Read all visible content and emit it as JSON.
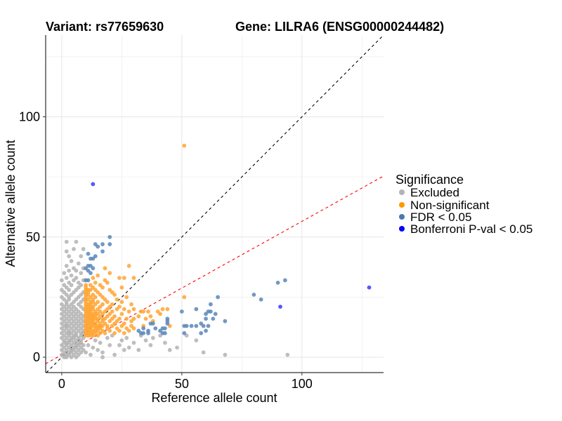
{
  "chart_data": {
    "type": "scatter",
    "title_left": "Variant: rs77659630",
    "title_right": "Gene: LILRA6 (ENSG00000244482)",
    "xlabel": "Reference allele count",
    "ylabel": "Alternative allele count",
    "xlim": [
      -6.7,
      134
    ],
    "ylim": [
      -6.4,
      134
    ],
    "xticks": [
      0,
      50,
      100
    ],
    "yticks": [
      0,
      50,
      100
    ],
    "grid_minor": [
      25,
      75,
      125
    ],
    "grid": true,
    "legend": {
      "title": "Significance",
      "placement": "right",
      "entries": [
        {
          "label": "Excluded",
          "color": "#b3b3b3"
        },
        {
          "label": "Non-significant",
          "color": "#ff9900"
        },
        {
          "label": "FDR < 0.05",
          "color": "#4a78b0"
        },
        {
          "label": "Bonferroni P-val < 0.05",
          "color": "#0000ff"
        }
      ]
    },
    "reference_lines": [
      {
        "name": "identity",
        "slope": 1,
        "intercept": 0,
        "color": "#000000",
        "style": "dashed"
      },
      {
        "name": "threshold",
        "slope": 0.555,
        "intercept": 1,
        "color": "#ff0000",
        "style": "dashed"
      }
    ],
    "series": [
      {
        "name": "Excluded",
        "color": "#b3b3b3",
        "columns": [
          {
            "x": 0,
            "ys": [
              1,
              3,
              5,
              8,
              10,
              12,
              14,
              16,
              18,
              20,
              22,
              25,
              28,
              32
            ]
          },
          {
            "x": 1,
            "ys": [
              0,
              2,
              4,
              6,
              7,
              9,
              11,
              13,
              15,
              17,
              19,
              21,
              24,
              27,
              30,
              35
            ]
          },
          {
            "x": 2,
            "ys": [
              0,
              1,
              3,
              5,
              6,
              8,
              10,
              12,
              13,
              14,
              16,
              18,
              20,
              22,
              23,
              26,
              29,
              33,
              38,
              44,
              48
            ]
          },
          {
            "x": 3,
            "ys": [
              1,
              2,
              4,
              6,
              7,
              9,
              10,
              11,
              13,
              15,
              17,
              19,
              21,
              24,
              25,
              28,
              31,
              36,
              42
            ]
          },
          {
            "x": 4,
            "ys": [
              0,
              2,
              3,
              5,
              7,
              8,
              10,
              12,
              14,
              16,
              18,
              20,
              22,
              26,
              30,
              34,
              40
            ]
          },
          {
            "x": 5,
            "ys": [
              1,
              3,
              4,
              6,
              8,
              9,
              11,
              13,
              15,
              17,
              19,
              21,
              23,
              27,
              32,
              37,
              45
            ]
          },
          {
            "x": 6,
            "ys": [
              0,
              2,
              4,
              5,
              7,
              9,
              10,
              12,
              14,
              16,
              18,
              20,
              24,
              28,
              33,
              36,
              48
            ]
          },
          {
            "x": 7,
            "ys": [
              1,
              3,
              5,
              6,
              8,
              11,
              13,
              15,
              17,
              19,
              22,
              25,
              29,
              31,
              39
            ]
          },
          {
            "x": 8,
            "ys": [
              2,
              4,
              6,
              7,
              9,
              10,
              12,
              14,
              16,
              18,
              21,
              23,
              26,
              30,
              35,
              42
            ]
          },
          {
            "x": 9,
            "ys": [
              3,
              5,
              8,
              10,
              11,
              13,
              15,
              17,
              20,
              24,
              27,
              32,
              37,
              45
            ]
          }
        ],
        "points": [
          [
            10,
            2
          ],
          [
            11,
            5
          ],
          [
            12,
            1
          ],
          [
            13,
            4
          ],
          [
            14,
            7
          ],
          [
            15,
            3
          ],
          [
            16,
            6
          ],
          [
            17,
            2
          ],
          [
            17,
            0
          ],
          [
            19,
            8
          ],
          [
            20,
            5
          ],
          [
            21,
            9
          ],
          [
            22,
            1
          ],
          [
            24,
            5
          ],
          [
            25,
            7
          ],
          [
            26,
            3
          ],
          [
            27,
            8
          ],
          [
            28,
            4
          ],
          [
            30,
            6
          ],
          [
            32,
            3
          ],
          [
            33,
            9
          ],
          [
            35,
            7
          ],
          [
            37,
            5
          ],
          [
            38,
            8
          ],
          [
            41,
            9
          ],
          [
            43,
            6
          ],
          [
            45,
            3
          ],
          [
            48,
            4
          ],
          [
            52,
            9
          ],
          [
            56,
            7
          ],
          [
            59,
            2
          ],
          [
            68,
            1
          ],
          [
            94,
            1
          ]
        ]
      },
      {
        "name": "Non-significant",
        "color": "#ffa533",
        "columns": [
          {
            "x": 10,
            "ys": [
              9,
              10,
              11,
              12,
              13,
              14,
              15,
              16,
              17,
              18,
              19,
              20,
              21,
              22,
              23,
              24,
              25,
              26,
              27,
              28,
              29,
              30
            ]
          },
          {
            "x": 11,
            "ys": [
              9,
              10,
              11,
              12,
              13,
              14,
              15,
              16,
              17,
              18,
              19,
              20,
              21,
              22,
              24,
              26,
              27,
              28
            ]
          },
          {
            "x": 12,
            "ys": [
              9,
              10,
              11,
              12,
              13,
              14,
              15,
              16,
              17,
              18,
              19,
              20,
              21,
              22,
              23,
              25,
              28,
              30
            ]
          },
          {
            "x": 13,
            "ys": [
              9,
              10,
              11,
              13,
              14,
              15,
              16,
              17,
              18,
              20,
              21,
              23,
              24,
              26,
              29,
              33
            ]
          },
          {
            "x": 14,
            "ys": [
              10,
              11,
              12,
              13,
              14,
              16,
              17,
              18,
              19,
              22,
              25,
              28,
              31
            ]
          },
          {
            "x": 15,
            "ys": [
              9,
              11,
              12,
              13,
              15,
              16,
              18,
              20,
              23,
              27,
              34
            ]
          },
          {
            "x": 16,
            "ys": [
              10,
              12,
              13,
              14,
              17,
              19,
              21,
              26,
              30
            ]
          },
          {
            "x": 17,
            "ys": [
              11,
              13,
              15,
              16,
              18,
              22,
              25,
              29
            ]
          },
          {
            "x": 18,
            "ys": [
              10,
              14,
              16,
              19,
              24,
              32,
              37
            ]
          },
          {
            "x": 19,
            "ys": [
              12,
              13,
              17,
              20,
              23,
              31
            ]
          },
          {
            "x": 20,
            "ys": [
              11,
              15,
              18,
              21,
              28,
              35
            ]
          },
          {
            "x": 21,
            "ys": [
              13,
              16,
              19,
              22,
              27
            ]
          },
          {
            "x": 22,
            "ys": [
              10,
              14,
              17,
              26
            ]
          },
          {
            "x": 23,
            "ys": [
              12,
              15,
              20,
              24
            ]
          },
          {
            "x": 24,
            "ys": [
              11,
              16,
              21,
              33
            ]
          },
          {
            "x": 25,
            "ys": [
              13,
              18,
              23,
              29
            ]
          },
          {
            "x": 26,
            "ys": [
              10,
              14,
              20,
              33
            ]
          },
          {
            "x": 27,
            "ys": [
              12,
              16,
              25
            ]
          },
          {
            "x": 28,
            "ys": [
              11,
              19,
              38
            ]
          },
          {
            "x": 29,
            "ys": [
              13,
              15,
              22
            ]
          },
          {
            "x": 30,
            "ys": [
              12,
              20,
              33
            ]
          }
        ],
        "points": [
          [
            32,
            17
          ],
          [
            33,
            19
          ],
          [
            34,
            19
          ],
          [
            34,
            13
          ],
          [
            35,
            16
          ],
          [
            36,
            19
          ],
          [
            37,
            17
          ],
          [
            38,
            15
          ],
          [
            40,
            19
          ],
          [
            41,
            18
          ],
          [
            42,
            20
          ],
          [
            44,
            20
          ],
          [
            45,
            13
          ],
          [
            30,
            16
          ],
          [
            51,
            25
          ],
          [
            51,
            88
          ]
        ]
      },
      {
        "name": "FDR < 0.05",
        "color": "#5b86b8",
        "columns": [],
        "points": [
          [
            20,
            50
          ],
          [
            14,
            47
          ],
          [
            15,
            46
          ],
          [
            17,
            47
          ],
          [
            20,
            47
          ],
          [
            17,
            44
          ],
          [
            11,
            43
          ],
          [
            14,
            42
          ],
          [
            12,
            41
          ],
          [
            13,
            41
          ],
          [
            10,
            37
          ],
          [
            11,
            38
          ],
          [
            13,
            37
          ],
          [
            12,
            35
          ],
          [
            10,
            32
          ],
          [
            11,
            32
          ],
          [
            11,
            36
          ],
          [
            12,
            38
          ],
          [
            32,
            11
          ],
          [
            34,
            12
          ],
          [
            33,
            10
          ],
          [
            34,
            10
          ],
          [
            36,
            11
          ],
          [
            36,
            10
          ],
          [
            37,
            14
          ],
          [
            38,
            14
          ],
          [
            39,
            12
          ],
          [
            41,
            11
          ],
          [
            42,
            12
          ],
          [
            43,
            12
          ],
          [
            42,
            10
          ],
          [
            44,
            16
          ],
          [
            44,
            15
          ],
          [
            44,
            14
          ],
          [
            43,
            10
          ],
          [
            50,
            19
          ],
          [
            56,
            20
          ],
          [
            51,
            13
          ],
          [
            52,
            13
          ],
          [
            54,
            13
          ],
          [
            56,
            13
          ],
          [
            58,
            14
          ],
          [
            59,
            13
          ],
          [
            61,
            13
          ],
          [
            51,
            10
          ],
          [
            58,
            10
          ],
          [
            60,
            11
          ],
          [
            60,
            18
          ],
          [
            61,
            19
          ],
          [
            62,
            19
          ],
          [
            62,
            22
          ],
          [
            64,
            18
          ],
          [
            65,
            25
          ],
          [
            68,
            15
          ],
          [
            63,
            16
          ],
          [
            60,
            16
          ],
          [
            80,
            26
          ],
          [
            83,
            24
          ],
          [
            90,
            31
          ],
          [
            93,
            32
          ]
        ]
      },
      {
        "name": "Bonferroni P-val < 0.05",
        "color": "#3a3aff",
        "columns": [],
        "points": [
          [
            13,
            72
          ],
          [
            91,
            21
          ],
          [
            128,
            29
          ]
        ]
      }
    ]
  }
}
